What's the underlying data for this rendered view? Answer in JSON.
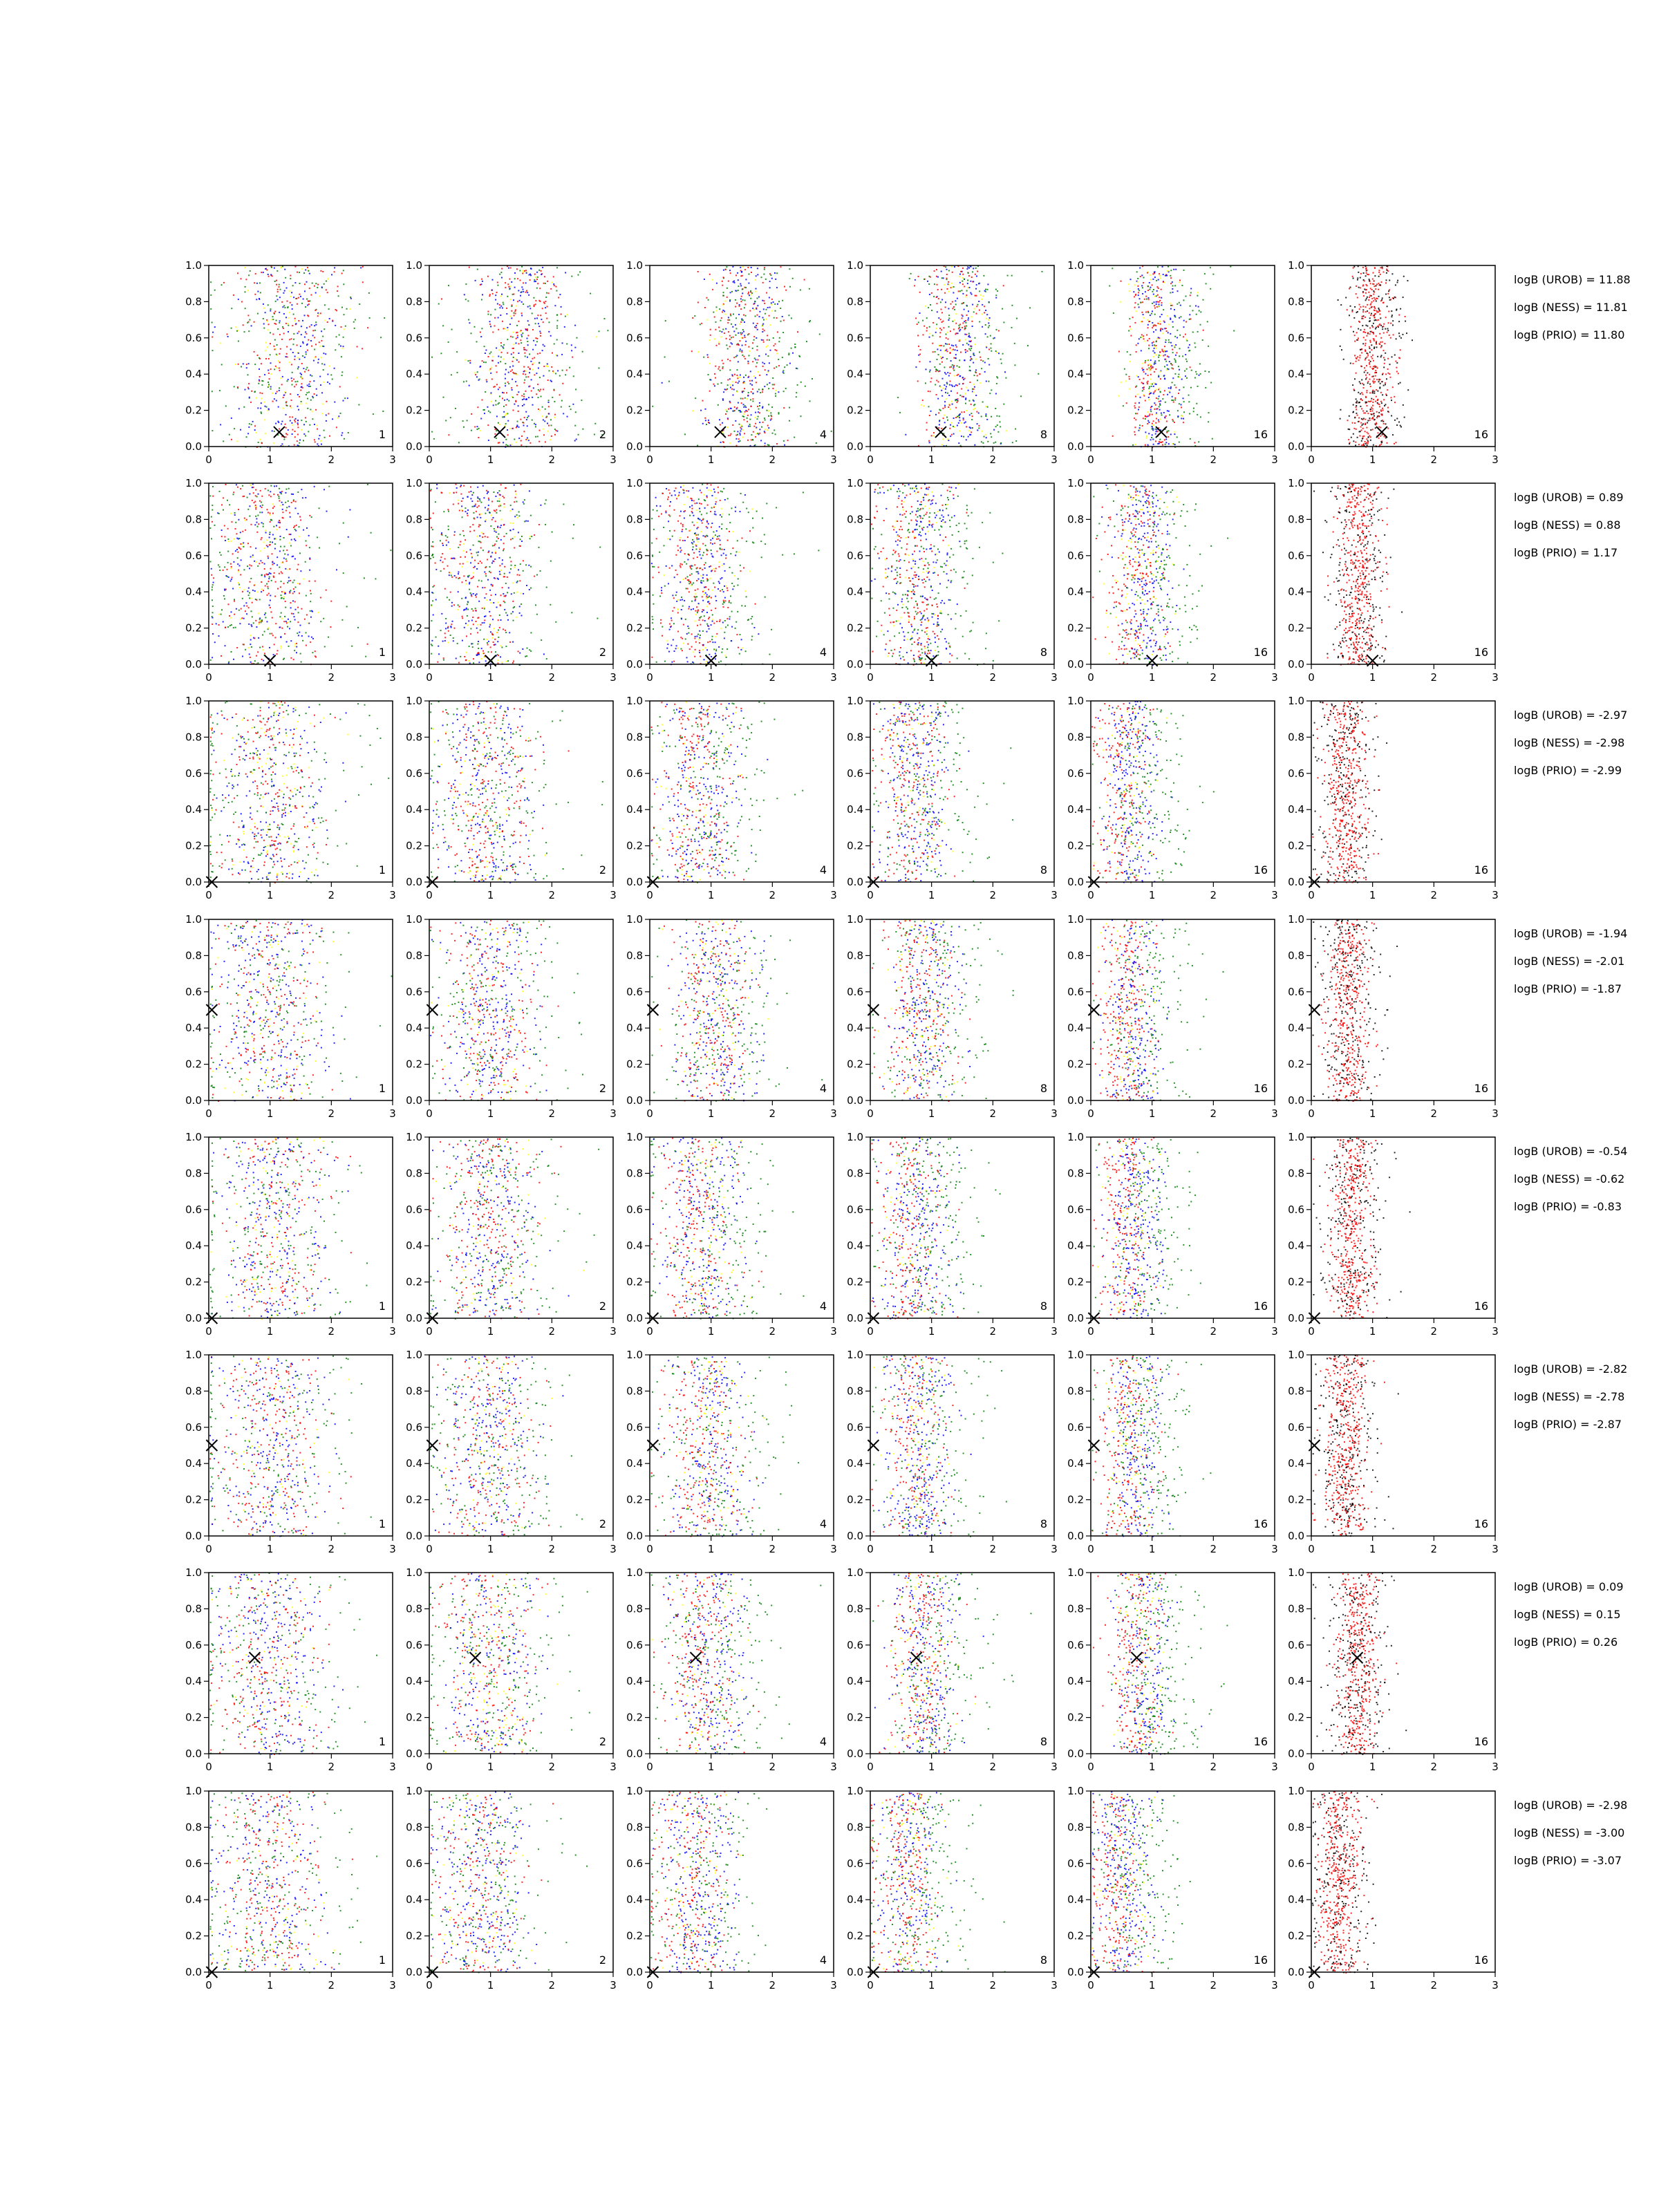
{
  "chart_data": {
    "type": "scatter",
    "title": "",
    "xlabel": "",
    "ylabel": "",
    "xlim": [
      0,
      3
    ],
    "ylim": [
      0,
      1
    ],
    "xticks": [
      "0",
      "1",
      "2",
      "3"
    ],
    "yticks": [
      "0.0",
      "0.2",
      "0.4",
      "0.6",
      "0.8",
      "1.0"
    ],
    "grid": false,
    "legend": "none",
    "series_colors": [
      "#ff0000",
      "#0000ff",
      "#008000",
      "#000000",
      "#ffff00"
    ],
    "columns": [
      "1",
      "2",
      "4",
      "8",
      "16",
      "16"
    ],
    "rows": [
      {
        "logb": [
          "logB (UROB) = 11.88",
          "logB (NESS) = 11.81",
          "logB (PRIO) = 11.80"
        ],
        "marker": {
          "x": 1.15,
          "y": 0.08
        },
        "centers": [
          1.3,
          1.5,
          1.55,
          1.4,
          1.05,
          1.0
        ]
      },
      {
        "logb": [
          "logB (UROB) = 0.89",
          "logB (NESS) = 0.88",
          "logB (PRIO) = 1.17"
        ],
        "marker": {
          "x": 1.0,
          "y": 0.02
        },
        "centers": [
          0.95,
          0.9,
          0.8,
          0.75,
          0.8,
          0.75
        ]
      },
      {
        "logb": [
          "logB (UROB) = -2.97",
          "logB (NESS) = -2.98",
          "logB (PRIO) = -2.99"
        ],
        "marker": {
          "x": 0.05,
          "y": 0.0
        },
        "centers": [
          1.0,
          0.9,
          0.8,
          0.7,
          0.6,
          0.55
        ]
      },
      {
        "logb": [
          "logB (UROB) = -1.94",
          "logB (NESS) = -2.01",
          "logB (PRIO) = -1.87"
        ],
        "marker": {
          "x": 0.05,
          "y": 0.5
        },
        "centers": [
          1.0,
          1.0,
          1.05,
          0.85,
          0.65,
          0.6
        ]
      },
      {
        "logb": [
          "logB (UROB) = -0.54",
          "logB (NESS) = -0.62",
          "logB (PRIO) = -0.83"
        ],
        "marker": {
          "x": 0.05,
          "y": 0.0
        },
        "centers": [
          1.05,
          1.0,
          0.85,
          0.7,
          0.65,
          0.65
        ]
      },
      {
        "logb": [
          "logB (UROB) = -2.82",
          "logB (NESS) = -2.78",
          "logB (PRIO) = -2.87"
        ],
        "marker": {
          "x": 0.05,
          "y": 0.5
        },
        "centers": [
          1.0,
          0.95,
          0.95,
          0.75,
          0.65,
          0.55
        ]
      },
      {
        "logb": [
          "logB (UROB) = 0.09",
          "logB (NESS) = 0.15",
          "logB (PRIO) = 0.26"
        ],
        "marker": {
          "x": 0.75,
          "y": 0.53
        },
        "centers": [
          1.0,
          0.95,
          0.9,
          0.85,
          0.8,
          0.75
        ]
      },
      {
        "logb": [
          "logB (UROB) = -2.98",
          "logB (NESS) = -3.00",
          "logB (PRIO) = -3.07"
        ],
        "marker": {
          "x": 0.05,
          "y": 0.0
        },
        "centers": [
          0.95,
          0.85,
          0.75,
          0.6,
          0.5,
          0.45
        ]
      }
    ]
  }
}
